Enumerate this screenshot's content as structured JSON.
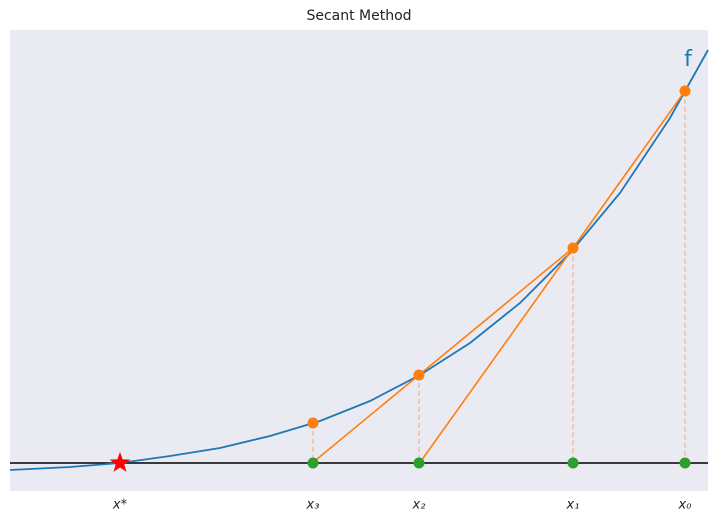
{
  "chart_data": {
    "type": "secant",
    "title": "Secant Method",
    "xlim": [
      -1.1,
      5.88
    ],
    "ylim": [
      -0.28,
      4.33
    ],
    "xticks": [
      {
        "value": 0,
        "label": "x*"
      },
      {
        "value": 1.93,
        "label": "x₃"
      },
      {
        "value": 2.99,
        "label": "x₂"
      },
      {
        "value": 4.53,
        "label": "x₁"
      },
      {
        "value": 5.65,
        "label": "x₀"
      }
    ],
    "series": [
      {
        "name": "f",
        "color": "#1f77b4",
        "x": [
          -1.1,
          -0.5,
          0,
          0.5,
          1,
          1.5,
          2,
          2.5,
          3,
          3.5,
          4,
          4.5,
          5,
          5.5,
          5.88
        ],
        "values": [
          -0.07,
          -0.04,
          0,
          0.07,
          0.15,
          0.27,
          0.42,
          0.62,
          0.88,
          1.2,
          1.6,
          2.1,
          2.7,
          3.45,
          4.13
        ]
      }
    ],
    "iterates": {
      "color": "#ff7f0e",
      "axis_color": "#2ca02c",
      "x": [
        5.65,
        4.53,
        2.99,
        1.93
      ],
      "values": [
        3.72,
        2.15,
        0.88,
        0.4
      ]
    },
    "root": {
      "x": 0,
      "color": "#ff0000"
    }
  }
}
